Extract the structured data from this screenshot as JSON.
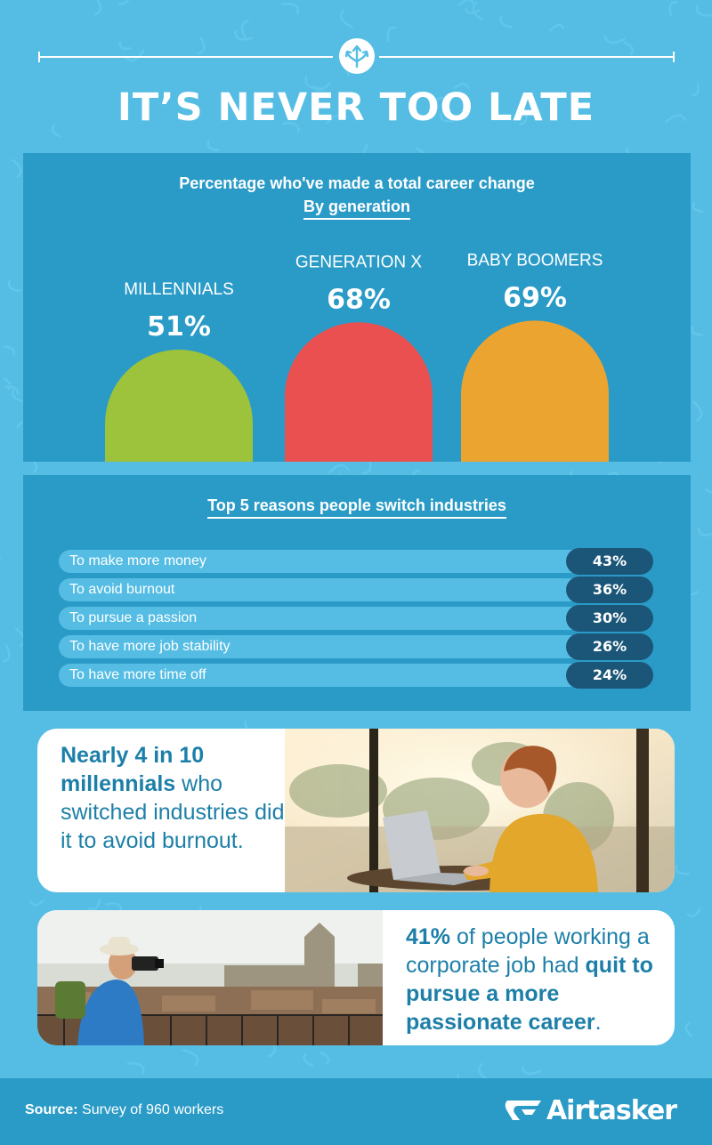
{
  "title": "IT’S NEVER TOO LATE",
  "colors": {
    "background": "#55bde4",
    "panel": "#2a9bc7",
    "millennials": "#9dc23b",
    "generation_x": "#ea5050",
    "baby_boomers": "#eba42f",
    "pill": "#1b5678",
    "card_text": "#1c7fa8"
  },
  "chart_data": [
    {
      "type": "bar",
      "title": "Percentage who've made a total career change",
      "subtitle": "By generation",
      "categories": [
        "MILLENNIALS",
        "GENERATION X",
        "BABY BOOMERS"
      ],
      "values": [
        51,
        68,
        69
      ],
      "value_labels": [
        "51%",
        "68%",
        "69%"
      ],
      "colors": [
        "#9dc23b",
        "#ea5050",
        "#eba42f"
      ],
      "ylim": [
        0,
        100
      ],
      "grid": false,
      "bar_shape": "rounded-top"
    },
    {
      "type": "bar",
      "orientation": "horizontal",
      "title": "Top 5 reasons people switch industries",
      "categories": [
        "To make more money",
        "To avoid burnout",
        "To pursue a passion",
        "To have more job stability",
        "To have more time off"
      ],
      "values": [
        43,
        36,
        30,
        26,
        24
      ],
      "value_labels": [
        "43%",
        "36%",
        "30%",
        "26%",
        "24%"
      ]
    }
  ],
  "stat_card_1": {
    "bold_text": "Nearly 4 in 10 millennials",
    "text": " who switched industries did it to avoid burnout.",
    "image": "woman-using-laptop-photo"
  },
  "stat_card_2": {
    "bold_lead": "41%",
    "text_1": " of people working a corporate job had ",
    "bold_text": "quit to pursue a more passionate career",
    "text_2": ".",
    "image": "photographer-over-city-photo"
  },
  "footer": {
    "source_label": "Source:",
    "source_text": " Survey of 960 workers",
    "logo_text": "Airtasker"
  }
}
